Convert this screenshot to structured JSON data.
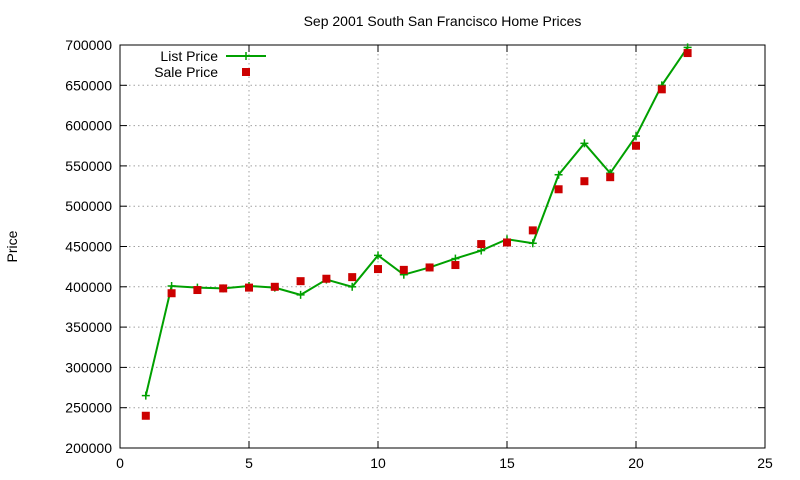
{
  "chart_data": {
    "type": "line",
    "title": "Sep 2001 South San Francisco Home Prices",
    "xlabel": "",
    "ylabel": "Price",
    "xlim": [
      0,
      25
    ],
    "ylim": [
      200000,
      700000
    ],
    "xticks": [
      0,
      5,
      10,
      15,
      20,
      25
    ],
    "yticks": [
      200000,
      250000,
      300000,
      350000,
      400000,
      450000,
      500000,
      550000,
      600000,
      650000,
      700000
    ],
    "grid": true,
    "legend_position": "top-left",
    "series": [
      {
        "name": "List Price",
        "style": "line-with-plus",
        "color": "#00a000",
        "x": [
          1,
          2,
          3,
          4,
          5,
          6,
          7,
          8,
          9,
          10,
          11,
          12,
          13,
          14,
          15,
          16,
          17,
          18,
          19,
          20,
          21,
          22
        ],
        "y": [
          265000,
          401000,
          399000,
          398000,
          401000,
          399000,
          390000,
          409000,
          400000,
          439000,
          415000,
          424000,
          435000,
          445000,
          459000,
          454000,
          539000,
          578000,
          541000,
          587000,
          650000,
          697000
        ]
      },
      {
        "name": "Sale Price",
        "style": "square-points",
        "color": "#cc0000",
        "x": [
          1,
          2,
          3,
          4,
          5,
          6,
          7,
          8,
          9,
          10,
          11,
          12,
          13,
          14,
          15,
          16,
          17,
          18,
          19,
          20,
          21,
          22
        ],
        "y": [
          240000,
          392000,
          396000,
          398000,
          399000,
          400000,
          407000,
          410000,
          412000,
          422000,
          421000,
          424000,
          427000,
          453000,
          455000,
          470000,
          521000,
          531000,
          536000,
          575000,
          645000,
          690000
        ]
      }
    ]
  }
}
